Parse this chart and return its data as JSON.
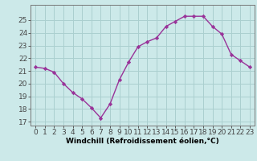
{
  "x": [
    0,
    1,
    2,
    3,
    4,
    5,
    6,
    7,
    8,
    9,
    10,
    11,
    12,
    13,
    14,
    15,
    16,
    17,
    18,
    19,
    20,
    21,
    22,
    23
  ],
  "y": [
    21.3,
    21.2,
    20.9,
    20.0,
    19.3,
    18.8,
    18.1,
    17.3,
    18.4,
    20.3,
    21.7,
    22.9,
    23.3,
    23.6,
    24.5,
    24.9,
    25.3,
    25.3,
    25.3,
    24.5,
    23.9,
    22.3,
    21.8,
    21.3
  ],
  "line_color": "#993399",
  "marker": "D",
  "marker_size": 2.2,
  "bg_color": "#cce9e9",
  "grid_color": "#aacfcf",
  "xlabel": "Windchill (Refroidissement éolien,°C)",
  "xlabel_fontsize": 6.5,
  "ylabel_ticks": [
    17,
    18,
    19,
    20,
    21,
    22,
    23,
    24,
    25
  ],
  "xlim": [
    -0.5,
    23.5
  ],
  "ylim": [
    16.7,
    26.2
  ],
  "tick_fontsize": 6.5,
  "line_width": 1.0
}
